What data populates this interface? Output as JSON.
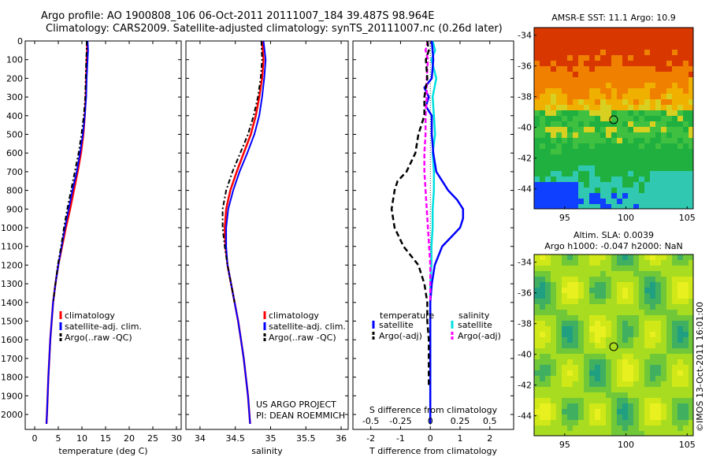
{
  "title": {
    "line1": "Argo profile: AO 1900808_106 06-Oct-2011 20111007_184 39.487S 98.964E",
    "line2": "Climatology: CARS2009. Satellite-adjusted climatology: synTS_20111007.nc (0.26d later)"
  },
  "colors": {
    "climatology": "#ff0000",
    "satellite": "#0000ff",
    "argo": "#000000",
    "sal_satellite": "#00e0e0",
    "sal_argo": "#ff00ff"
  },
  "chart_data": [
    {
      "type": "line",
      "id": "temperature",
      "xlabel": "temperature (deg C)",
      "xlim": [
        -2,
        31
      ],
      "xticks": [
        0,
        5,
        10,
        15,
        20,
        25,
        30
      ],
      "ylim": [
        2080,
        0
      ],
      "yticks": [
        0,
        100,
        200,
        300,
        400,
        500,
        600,
        700,
        800,
        900,
        1000,
        1100,
        1200,
        1300,
        1400,
        1500,
        1600,
        1700,
        1800,
        1900,
        2000
      ],
      "legend": [
        "climatology",
        "satellite-adj. clim.",
        "Argo(..raw -QC)"
      ],
      "series": [
        {
          "name": "climatology",
          "depth": [
            0,
            50,
            100,
            200,
            300,
            400,
            500,
            600,
            700,
            800,
            900,
            1000,
            1100,
            1200,
            1300,
            1400,
            1600,
            1800,
            2000,
            2050
          ],
          "values": [
            11.1,
            11.1,
            11.0,
            10.9,
            10.8,
            10.6,
            10.3,
            9.8,
            9.1,
            8.3,
            7.5,
            6.6,
            5.8,
            5.0,
            4.4,
            3.9,
            3.3,
            2.9,
            2.6,
            2.5
          ]
        },
        {
          "name": "satellite-adj. clim.",
          "depth": [
            0,
            50,
            100,
            200,
            300,
            400,
            500,
            600,
            700,
            800,
            900,
            1000,
            1100,
            1200,
            1300,
            1400,
            1600,
            1800,
            2000,
            2050
          ],
          "values": [
            11.2,
            11.3,
            11.2,
            11.0,
            10.9,
            10.6,
            10.2,
            9.6,
            8.9,
            8.0,
            7.2,
            6.4,
            5.7,
            5.0,
            4.4,
            3.9,
            3.3,
            2.9,
            2.6,
            2.5
          ]
        },
        {
          "name": "Argo(..raw -QC)",
          "depth": [
            0,
            50,
            100,
            200,
            300,
            400,
            500,
            600,
            700,
            800,
            900,
            1000,
            1100,
            1200,
            1300,
            1400
          ],
          "values": [
            11.0,
            11.0,
            10.9,
            10.8,
            10.7,
            10.4,
            9.9,
            9.3,
            8.5,
            7.7,
            6.9,
            6.2,
            5.6,
            4.9,
            4.4,
            3.9
          ]
        }
      ]
    },
    {
      "type": "line",
      "id": "salinity",
      "xlabel": "salinity",
      "xlim": [
        33.8,
        36.1
      ],
      "xticks": [
        34,
        34.5,
        35,
        35.5,
        36
      ],
      "xticklabels": [
        "34",
        "34.5",
        "35",
        "35.5",
        "36"
      ],
      "ylim": [
        2080,
        0
      ],
      "legend": [
        "climatology",
        "satellite-adj. clim.",
        "Argo(..raw -QC)"
      ],
      "series": [
        {
          "name": "climatology",
          "depth": [
            0,
            100,
            200,
            300,
            400,
            500,
            600,
            700,
            800,
            900,
            1000,
            1100,
            1200,
            1300,
            1400,
            1500,
            1600,
            1700,
            1800,
            1900,
            2000,
            2050
          ],
          "values": [
            34.88,
            34.9,
            34.88,
            34.84,
            34.79,
            34.72,
            34.62,
            34.52,
            34.43,
            34.37,
            34.35,
            34.36,
            34.39,
            34.44,
            34.49,
            34.54,
            34.58,
            34.62,
            34.65,
            34.68,
            34.7,
            34.71
          ]
        },
        {
          "name": "satellite-adj. clim.",
          "depth": [
            0,
            100,
            200,
            300,
            400,
            500,
            600,
            700,
            800,
            900,
            1000,
            1100,
            1200,
            1300,
            1400,
            1500,
            1600,
            1700,
            1800,
            1900,
            2000,
            2050
          ],
          "values": [
            34.9,
            34.93,
            34.91,
            34.88,
            34.84,
            34.77,
            34.67,
            34.56,
            34.47,
            34.4,
            34.37,
            34.37,
            34.39,
            34.44,
            34.49,
            34.54,
            34.58,
            34.62,
            34.65,
            34.68,
            34.7,
            34.71
          ]
        },
        {
          "name": "Argo(..raw -QC)",
          "depth": [
            0,
            100,
            200,
            300,
            400,
            500,
            600,
            700,
            800,
            900,
            1000,
            1100,
            1200,
            1300,
            1400
          ],
          "values": [
            34.87,
            34.88,
            34.86,
            34.82,
            34.76,
            34.68,
            34.57,
            34.46,
            34.37,
            34.32,
            34.32,
            34.35,
            34.39,
            34.44,
            34.49
          ]
        }
      ]
    },
    {
      "type": "line",
      "id": "differences",
      "xlabel": "T difference from climatology",
      "xlabel_top": "S difference from climatology",
      "xlim": [
        -2.6,
        2.8
      ],
      "xticks": [
        -2,
        -1,
        0,
        1,
        2
      ],
      "top_ticks": [
        -0.5,
        -0.25,
        0,
        0.25,
        0.5
      ],
      "top_ticklabels": [
        "-0.5",
        "-0.25",
        "0",
        "0.25",
        "0.5"
      ],
      "ylim": [
        2080,
        0
      ],
      "legend_temperature": {
        "heading": "temperature",
        "items": [
          "satellite",
          "Argo(-adj)"
        ]
      },
      "legend_salinity": {
        "heading": "salinity",
        "items": [
          "satellite",
          "Argo(-adj)"
        ]
      },
      "series": [
        {
          "name": "temperature satellite",
          "depth": [
            0,
            100,
            200,
            250,
            300,
            350,
            400,
            500,
            600,
            700,
            800,
            850,
            900,
            950,
            1000,
            1050,
            1100,
            1200,
            1300,
            1400,
            1600,
            1800,
            2000,
            2050
          ],
          "values": [
            0.05,
            0.1,
            0.05,
            -0.2,
            -0.05,
            -0.15,
            0.05,
            0.05,
            0.1,
            0.2,
            0.6,
            0.9,
            1.1,
            1.1,
            1.0,
            0.7,
            0.4,
            0.15,
            0.05,
            0.0,
            0.0,
            0.0,
            0.0,
            0.0
          ]
        },
        {
          "name": "temperature Argo(-adj)",
          "depth": [
            0,
            50,
            100,
            200,
            300,
            400,
            500,
            600,
            700,
            750,
            800,
            900,
            1000,
            1100,
            1200,
            1300,
            1400,
            1500,
            1600,
            1700,
            1800,
            1850
          ],
          "values": [
            -0.1,
            -0.05,
            -0.15,
            -0.1,
            -0.2,
            -0.2,
            -0.4,
            -0.5,
            -0.8,
            -1.1,
            -1.2,
            -1.3,
            -1.2,
            -0.9,
            -0.4,
            -0.2,
            -0.1,
            -0.1,
            -0.05,
            -0.05,
            -0.05,
            -0.05
          ]
        },
        {
          "name": "salinity satellite",
          "depth": [
            0,
            50,
            100,
            200,
            300,
            400,
            500,
            600,
            700,
            800,
            900,
            1000,
            1100,
            1200,
            1300,
            1400,
            1600,
            1800,
            2000,
            2050
          ],
          "values": [
            0.02,
            0.04,
            0.01,
            0.05,
            0.02,
            0.03,
            0.04,
            0.02,
            0.03,
            0.03,
            0.02,
            0.02,
            0.01,
            0.01,
            0.0,
            0.0,
            0.0,
            0.0,
            0.0,
            0.0
          ]
        },
        {
          "name": "salinity Argo(-adj)",
          "depth": [
            0,
            50,
            100,
            200,
            300,
            400,
            500,
            600,
            700,
            800,
            900,
            1000,
            1100,
            1200,
            1300,
            1400
          ],
          "values": [
            -0.02,
            -0.04,
            -0.02,
            -0.03,
            -0.03,
            -0.04,
            -0.04,
            -0.05,
            -0.05,
            -0.04,
            -0.03,
            -0.02,
            -0.01,
            0.0,
            0.0,
            0.0
          ]
        }
      ]
    },
    {
      "type": "heatmap",
      "id": "sst_map",
      "title": "AMSR-E SST: 11.1  Argo: 10.9",
      "xticks": [
        95,
        100,
        105
      ],
      "yticks": [
        -34,
        -36,
        -38,
        -40,
        -42,
        -44
      ],
      "xlim": [
        92.5,
        105.5
      ],
      "ylim": [
        -45.3,
        -33.5
      ],
      "marker": {
        "lon": 99,
        "lat": -39.5
      }
    },
    {
      "type": "heatmap",
      "id": "sla_map",
      "title_line1": "Altim. SLA: 0.0039",
      "title_line2": "Argo h1000: -0.047 h2000: NaN",
      "xticks": [
        95,
        100,
        105
      ],
      "yticks": [
        -34,
        -36,
        -38,
        -40,
        -42,
        -44
      ],
      "xlim": [
        92.5,
        105.5
      ],
      "ylim": [
        -45.3,
        -33.5
      ],
      "marker": {
        "lon": 99,
        "lat": -39.5
      }
    }
  ],
  "credits": {
    "project": "US ARGO PROJECT",
    "pi": "PI: DEAN ROEMMICH",
    "imos": "©IMOS 13-Oct-2011 16:01:00"
  }
}
